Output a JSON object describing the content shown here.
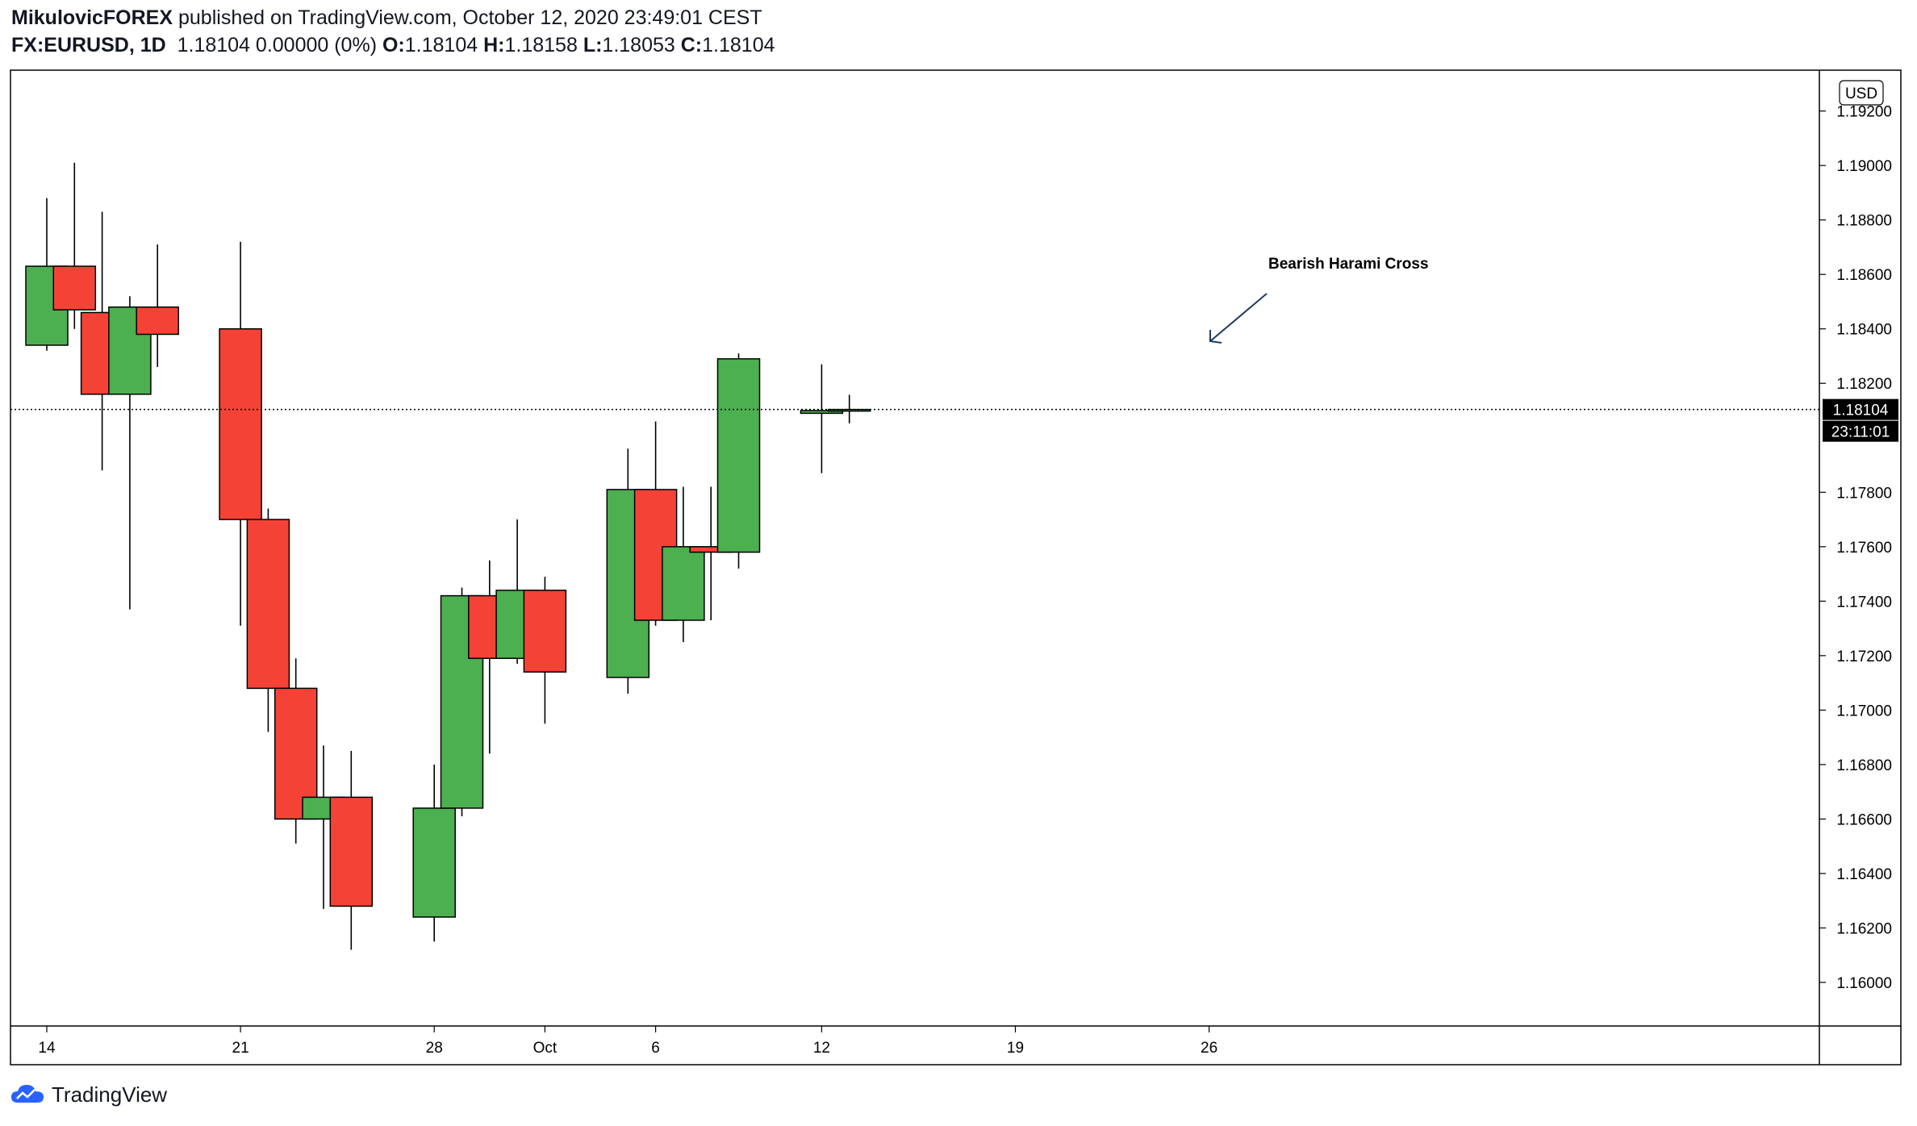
{
  "header": {
    "author": "MikulovicFOREX",
    "published_text": "published on TradingView.com, October 12, 2020 23:49:01 CEST",
    "symbol": "FX:EURUSD, 1D",
    "last": "1.18104",
    "change": "0.00000 (0%)",
    "o_label": "O:",
    "o_value": "1.18104",
    "h_label": "H:",
    "h_value": "1.18158",
    "l_label": "L:",
    "l_value": "1.18053",
    "c_label": "C:",
    "c_value": "1.18104"
  },
  "footer": {
    "brand": "TradingView"
  },
  "chart_data": {
    "type": "candlestick",
    "currency": "USD",
    "ylim": [
      1.1584,
      1.1935
    ],
    "yticks": [
      1.16,
      1.162,
      1.164,
      1.166,
      1.168,
      1.17,
      1.172,
      1.174,
      1.176,
      1.178,
      1.182,
      1.184,
      1.186,
      1.188,
      1.19,
      1.192
    ],
    "ytick_labels": [
      "1.16000",
      "1.16200",
      "1.16400",
      "1.16600",
      "1.16800",
      "1.17000",
      "1.17200",
      "1.17400",
      "1.17600",
      "1.17800",
      "1.18200",
      "1.18400",
      "1.18600",
      "1.18800",
      "1.19000",
      "1.19200"
    ],
    "xtick_labels": [
      {
        "day": 0,
        "label": "14"
      },
      {
        "day": 7,
        "label": "21"
      },
      {
        "day": 14,
        "label": "28"
      },
      {
        "day": 18,
        "label": "Oct"
      },
      {
        "day": 22,
        "label": "6"
      },
      {
        "day": 28,
        "label": "12"
      },
      {
        "day": 35,
        "label": "19"
      },
      {
        "day": 42,
        "label": "26"
      }
    ],
    "candles": [
      {
        "date": "Sep 14",
        "day": 0,
        "open": 1.1834,
        "high": 1.1888,
        "low": 1.1832,
        "close": 1.1863
      },
      {
        "date": "Sep 15",
        "day": 1,
        "open": 1.1863,
        "high": 1.1901,
        "low": 1.184,
        "close": 1.1847
      },
      {
        "date": "Sep 16",
        "day": 2,
        "open": 1.1846,
        "high": 1.1883,
        "low": 1.1788,
        "close": 1.1816
      },
      {
        "date": "Sep 17",
        "day": 3,
        "open": 1.1816,
        "high": 1.1852,
        "low": 1.1737,
        "close": 1.1848
      },
      {
        "date": "Sep 18",
        "day": 4,
        "open": 1.1848,
        "high": 1.1871,
        "low": 1.1826,
        "close": 1.1838
      },
      {
        "date": "Sep 21",
        "day": 7,
        "open": 1.184,
        "high": 1.1872,
        "low": 1.1731,
        "close": 1.177
      },
      {
        "date": "Sep 22",
        "day": 8,
        "open": 1.177,
        "high": 1.1774,
        "low": 1.1692,
        "close": 1.1708
      },
      {
        "date": "Sep 23",
        "day": 9,
        "open": 1.1708,
        "high": 1.1719,
        "low": 1.1651,
        "close": 1.166
      },
      {
        "date": "Sep 24",
        "day": 10,
        "open": 1.166,
        "high": 1.1687,
        "low": 1.1627,
        "close": 1.1668
      },
      {
        "date": "Sep 25",
        "day": 11,
        "open": 1.1668,
        "high": 1.1685,
        "low": 1.1612,
        "close": 1.1628
      },
      {
        "date": "Sep 28",
        "day": 14,
        "open": 1.1624,
        "high": 1.168,
        "low": 1.1615,
        "close": 1.1664
      },
      {
        "date": "Sep 29",
        "day": 15,
        "open": 1.1664,
        "high": 1.1745,
        "low": 1.1661,
        "close": 1.1742
      },
      {
        "date": "Sep 30",
        "day": 16,
        "open": 1.1742,
        "high": 1.1755,
        "low": 1.1684,
        "close": 1.1719
      },
      {
        "date": "Oct 1",
        "day": 17,
        "open": 1.1719,
        "high": 1.177,
        "low": 1.1717,
        "close": 1.1744
      },
      {
        "date": "Oct 2",
        "day": 18,
        "open": 1.1744,
        "high": 1.1749,
        "low": 1.1695,
        "close": 1.1714
      },
      {
        "date": "Oct 5",
        "day": 21,
        "open": 1.1712,
        "high": 1.1796,
        "low": 1.1706,
        "close": 1.1781
      },
      {
        "date": "Oct 6",
        "day": 22,
        "open": 1.1781,
        "high": 1.1806,
        "low": 1.1731,
        "close": 1.1733
      },
      {
        "date": "Oct 7",
        "day": 23,
        "open": 1.1733,
        "high": 1.1782,
        "low": 1.1725,
        "close": 1.176
      },
      {
        "date": "Oct 8",
        "day": 24,
        "open": 1.176,
        "high": 1.1782,
        "low": 1.1733,
        "close": 1.1758
      },
      {
        "date": "Oct 9",
        "day": 25,
        "open": 1.1758,
        "high": 1.1831,
        "low": 1.1752,
        "close": 1.1829
      },
      {
        "date": "Oct 12",
        "day": 28,
        "open": 1.1809,
        "high": 1.1827,
        "low": 1.1787,
        "close": 1.181
      },
      {
        "date": "Oct 13",
        "day": 29,
        "open": 1.18104,
        "high": 1.18158,
        "low": 1.18053,
        "close": 1.18104
      }
    ],
    "last_price": 1.18104,
    "last_price_label": "1.18104",
    "countdown_label": "23:11:01",
    "annotation": {
      "text": "Bearish Harami Cross",
      "points_to_day": 29
    },
    "colors": {
      "up": "#4caf50",
      "down": "#f44336",
      "outline": "#000000",
      "grid": "#000000"
    }
  }
}
